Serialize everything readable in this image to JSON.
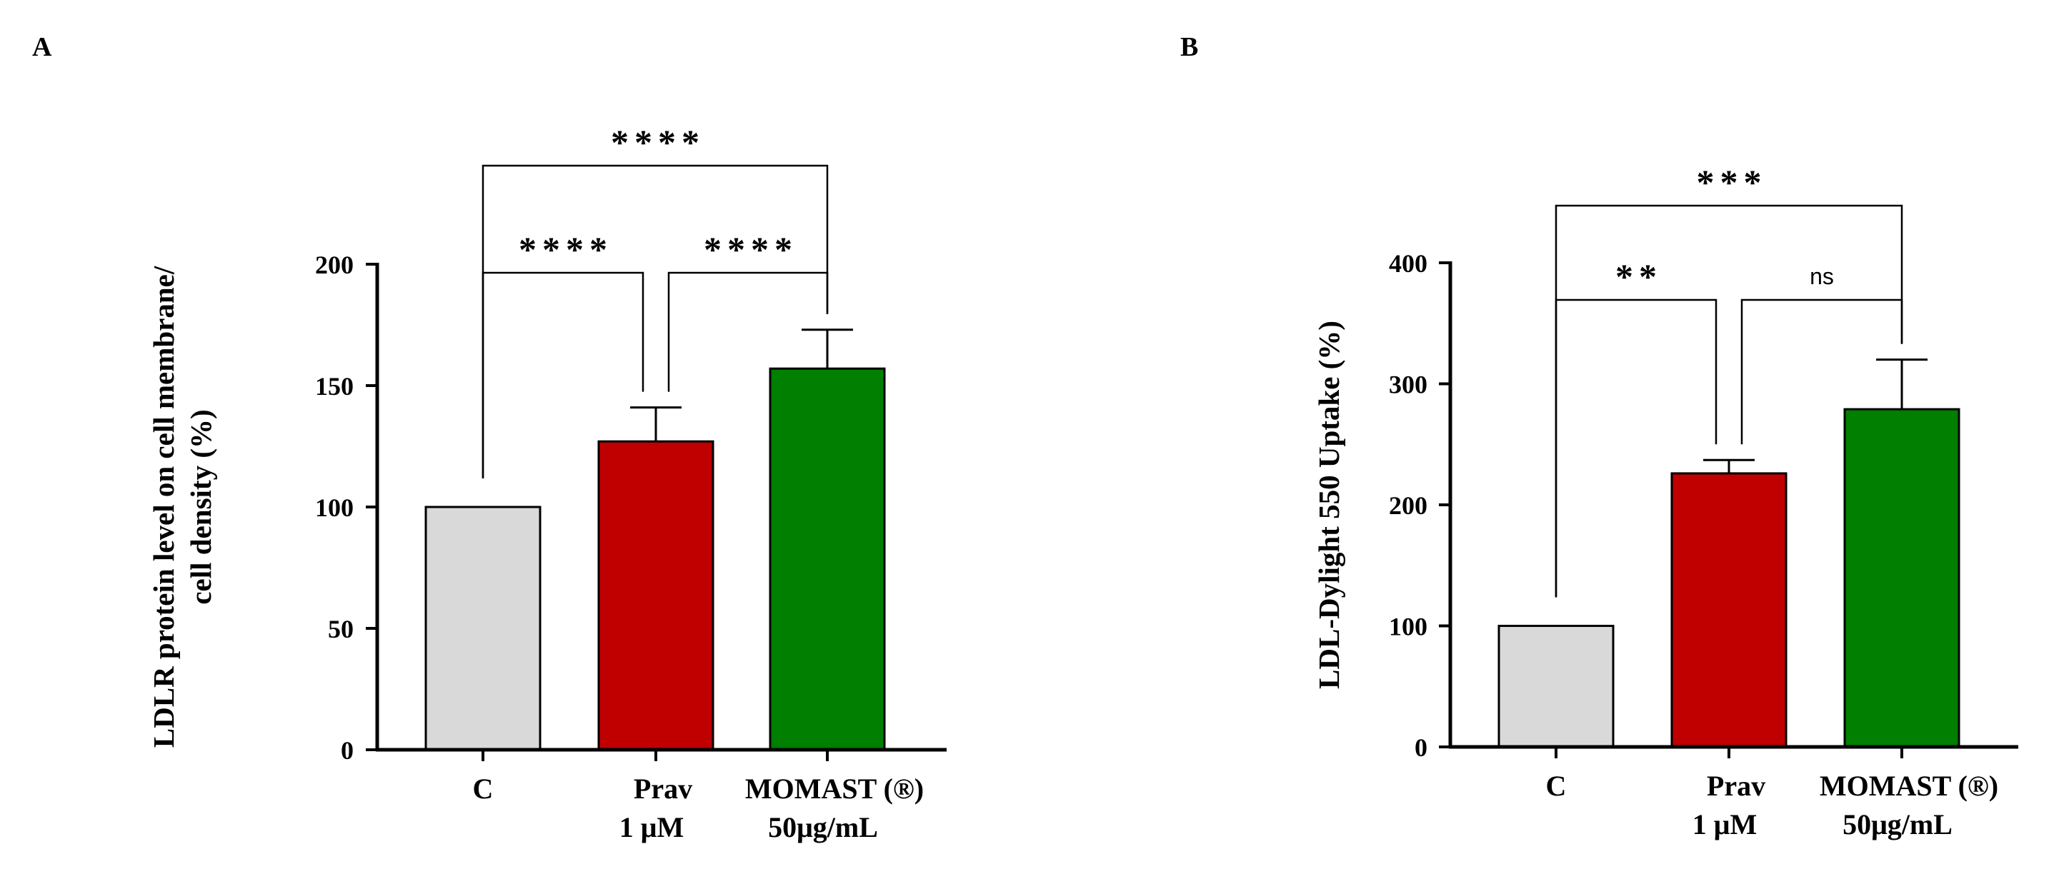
{
  "chart_data": [
    {
      "panel": "A",
      "type": "bar",
      "categories": [
        [
          "C"
        ],
        [
          "Prav",
          "1 μM"
        ],
        [
          "MOMAST (®)",
          "50μg/mL"
        ]
      ],
      "values": [
        100,
        127,
        157
      ],
      "errors": [
        0,
        14,
        16
      ],
      "colors": [
        "#d9d9d9",
        "#c00000",
        "#007f00"
      ],
      "ylabel_lines": [
        "LDLR protein level on cell membrane/",
        "cell density (%)"
      ],
      "xlabel": "",
      "ylim": [
        0,
        200
      ],
      "yticks": [
        0,
        50,
        100,
        150,
        200
      ],
      "comparisons": [
        {
          "from": 0,
          "to": 1,
          "label": "****"
        },
        {
          "from": 1,
          "to": 2,
          "label": "****"
        },
        {
          "from": 0,
          "to": 2,
          "label": "****"
        }
      ]
    },
    {
      "panel": "B",
      "type": "bar",
      "categories": [
        [
          "C"
        ],
        [
          "Prav",
          "1 μM"
        ],
        [
          "MOMAST (®)",
          "50μg/mL"
        ]
      ],
      "values": [
        100,
        226,
        279
      ],
      "errors": [
        0,
        11,
        41
      ],
      "colors": [
        "#d9d9d9",
        "#c00000",
        "#007f00"
      ],
      "ylabel_lines": [
        "LDL-Dylight 550 Uptake (%)"
      ],
      "xlabel": "",
      "ylim": [
        0,
        400
      ],
      "yticks": [
        0,
        100,
        200,
        300,
        400
      ],
      "comparisons": [
        {
          "from": 0,
          "to": 1,
          "label": "**"
        },
        {
          "from": 1,
          "to": 2,
          "label": "ns"
        },
        {
          "from": 0,
          "to": 2,
          "label": "***"
        }
      ]
    }
  ]
}
